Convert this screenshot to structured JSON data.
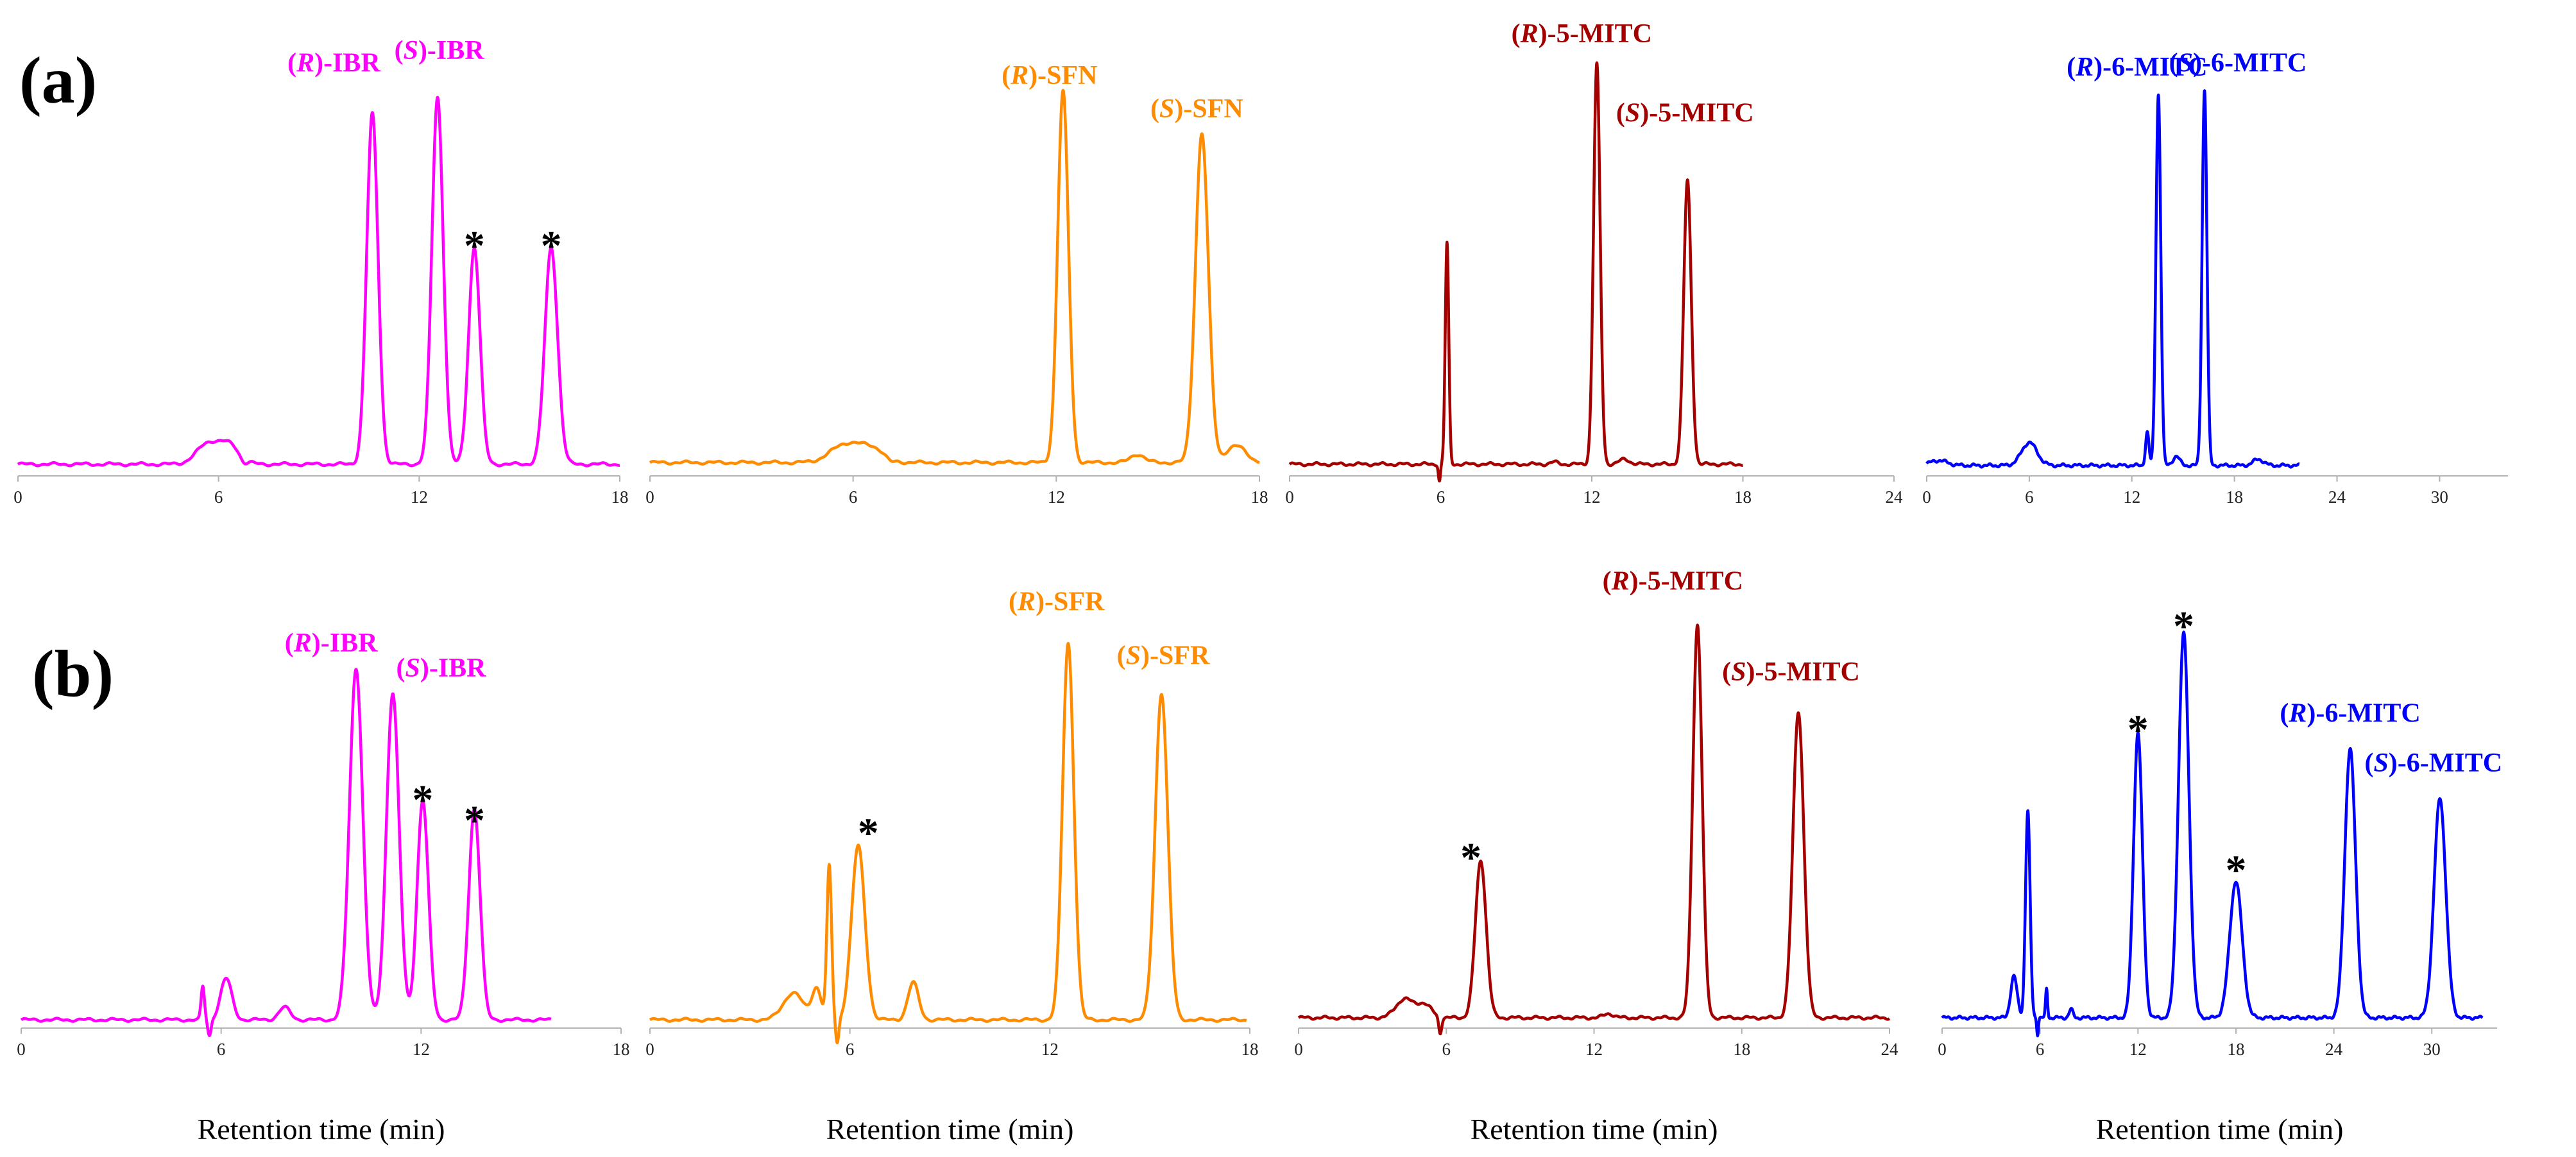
{
  "figure": {
    "row_labels": [
      "(a)",
      "(b)"
    ],
    "axis_color": "#b3b3b3"
  },
  "chart_data": [
    {
      "id": "a1",
      "type": "line",
      "row": "a",
      "color": "#ff00ff",
      "xlabel": "",
      "ylabel": "",
      "xlim": [
        0,
        18
      ],
      "ylim": [
        0,
        100
      ],
      "ticks": [
        0,
        6,
        12,
        18
      ],
      "tick_labels": [
        "0",
        "6",
        "12",
        "18"
      ],
      "baseline": 2.8,
      "features": [
        {
          "c": 5.7,
          "h": 5.0,
          "w": 0.35
        },
        {
          "c": 6.35,
          "h": 4.2,
          "w": 0.3
        },
        {
          "c": 6.75,
          "h": -1.2,
          "w": 0.1
        },
        {
          "c": 10.6,
          "h": 84,
          "w": 0.17
        },
        {
          "c": 12.55,
          "h": 88,
          "w": 0.17
        },
        {
          "c": 13.65,
          "h": 52,
          "w": 0.17
        },
        {
          "c": 15.95,
          "h": 52,
          "w": 0.19
        }
      ],
      "labels": [
        {
          "text_parts": [
            "(",
            "R",
            ")-IBR"
          ],
          "x": 9.45,
          "y": 97
        },
        {
          "text_parts": [
            "(",
            "S",
            ")-IBR"
          ],
          "x": 12.6,
          "y": 100
        }
      ],
      "stars": [
        {
          "x": 13.65,
          "y": 58
        },
        {
          "x": 15.95,
          "y": 58
        }
      ]
    },
    {
      "id": "a2",
      "type": "line",
      "row": "a",
      "color": "#ff8c00",
      "xlabel": "",
      "ylabel": "",
      "xlim": [
        0,
        18
      ],
      "ylim": [
        0,
        100
      ],
      "ticks": [
        0,
        6,
        12,
        18
      ],
      "tick_labels": [
        "0",
        "6",
        "12",
        "18"
      ],
      "baseline": 3.2,
      "features": [
        {
          "c": 5.8,
          "h": 4.5,
          "w": 0.45
        },
        {
          "c": 6.6,
          "h": 3.0,
          "w": 0.35
        },
        {
          "c": 7.1,
          "h": -0.8,
          "w": 0.12
        },
        {
          "c": 12.2,
          "h": 89,
          "w": 0.16
        },
        {
          "c": 14.4,
          "h": 2.0,
          "w": 0.2
        },
        {
          "c": 16.3,
          "h": 79,
          "w": 0.19
        },
        {
          "c": 17.3,
          "h": 4.0,
          "w": 0.3
        }
      ],
      "labels": [
        {
          "text_parts": [
            "(",
            "R",
            ")-SFN"
          ],
          "x": 11.8,
          "y": 94
        },
        {
          "text_parts": [
            "(",
            "S",
            ")-SFN"
          ],
          "x": 16.15,
          "y": 86
        }
      ],
      "stars": []
    },
    {
      "id": "a3",
      "type": "line",
      "row": "a",
      "color": "#a50000",
      "xlabel": "",
      "ylabel": "",
      "xlim": [
        0,
        24
      ],
      "ylim": [
        0,
        100
      ],
      "ticks": [
        0,
        6,
        12,
        18,
        24
      ],
      "tick_labels": [
        "0",
        "6",
        "12",
        "18",
        "24"
      ],
      "baseline": 2.8,
      "x_end": 18,
      "features": [
        {
          "c": 6.25,
          "h": 53,
          "w": 0.07
        },
        {
          "c": 5.95,
          "h": -4.0,
          "w": 0.04
        },
        {
          "c": 10.5,
          "h": 0.5,
          "w": 0.15
        },
        {
          "c": 12.2,
          "h": 96,
          "w": 0.13
        },
        {
          "c": 13.3,
          "h": 1.2,
          "w": 0.2
        },
        {
          "c": 15.8,
          "h": 68,
          "w": 0.15
        }
      ],
      "labels": [
        {
          "text_parts": [
            "(",
            "R",
            ")-5-MITC"
          ],
          "x": 11.6,
          "y": 104
        },
        {
          "text_parts": [
            "(",
            "S",
            ")-5-MITC"
          ],
          "x": 15.7,
          "y": 85
        }
      ],
      "stars": []
    },
    {
      "id": "a4",
      "type": "line",
      "row": "a",
      "color": "#0000ff",
      "xlabel": "",
      "ylabel": "",
      "xlim": [
        0,
        34
      ],
      "ylim": [
        0,
        100
      ],
      "ticks": [
        0,
        6,
        12,
        18,
        24,
        30
      ],
      "tick_labels": [
        "0",
        "6",
        "12",
        "18",
        "24",
        "30"
      ],
      "baseline": 2.5,
      "x_end": 21.8,
      "features": [
        {
          "c": 0.7,
          "h": 1.2,
          "w": 0.5
        },
        {
          "c": 6.0,
          "h": 5.5,
          "w": 0.45
        },
        {
          "c": 12.9,
          "h": 8.0,
          "w": 0.1
        },
        {
          "c": 13.55,
          "h": 89,
          "w": 0.14
        },
        {
          "c": 14.6,
          "h": 2.2,
          "w": 0.2
        },
        {
          "c": 16.25,
          "h": 90,
          "w": 0.14
        },
        {
          "c": 19.4,
          "h": 1.5,
          "w": 0.3
        }
      ],
      "labels": [
        {
          "text_parts": [
            "(",
            "R",
            ")-6-MITC"
          ],
          "x": 12.3,
          "y": 96
        },
        {
          "text_parts": [
            "(",
            "S",
            ")-6-MITC"
          ],
          "x": 18.2,
          "y": 97
        }
      ],
      "stars": []
    },
    {
      "id": "b1",
      "type": "line",
      "row": "b",
      "color": "#ff00ff",
      "xlabel": "Retention time (min)",
      "ylabel": "",
      "xlim": [
        0,
        18
      ],
      "ylim": [
        0,
        100
      ],
      "ticks": [
        0,
        6,
        12,
        18
      ],
      "tick_labels": [
        "0",
        "6",
        "12",
        "18"
      ],
      "baseline": 2.0,
      "x_end": 15.9,
      "features": [
        {
          "c": 5.45,
          "h": 8.0,
          "w": 0.05
        },
        {
          "c": 5.65,
          "h": -4.0,
          "w": 0.05
        },
        {
          "c": 6.15,
          "h": 10,
          "w": 0.17
        },
        {
          "c": 7.9,
          "h": 3.0,
          "w": 0.17
        },
        {
          "c": 10.05,
          "h": 85,
          "w": 0.2
        },
        {
          "c": 11.15,
          "h": 79,
          "w": 0.19
        },
        {
          "c": 12.05,
          "h": 53,
          "w": 0.17
        },
        {
          "c": 13.6,
          "h": 51,
          "w": 0.17
        }
      ],
      "labels": [
        {
          "text_parts": [
            "(",
            "R",
            ")-IBR"
          ],
          "x": 9.3,
          "y": 91
        },
        {
          "text_parts": [
            "(",
            "S",
            ")-IBR"
          ],
          "x": 12.6,
          "y": 85
        }
      ],
      "stars": [
        {
          "x": 12.05,
          "y": 58
        },
        {
          "x": 13.6,
          "y": 53
        }
      ]
    },
    {
      "id": "b2",
      "type": "line",
      "row": "b",
      "color": "#ff8c00",
      "xlabel": "Retention time (min)",
      "ylabel": "",
      "xlim": [
        0,
        18
      ],
      "ylim": [
        0,
        100
      ],
      "ticks": [
        0,
        6,
        12,
        18
      ],
      "tick_labels": [
        "0",
        "6",
        "12",
        "18"
      ],
      "baseline": 2.0,
      "x_end": 17.9,
      "features": [
        {
          "c": 4.3,
          "h": 6.5,
          "w": 0.3
        },
        {
          "c": 5.0,
          "h": 7.5,
          "w": 0.14
        },
        {
          "c": 5.38,
          "h": 37,
          "w": 0.07
        },
        {
          "c": 5.62,
          "h": -6.0,
          "w": 0.05
        },
        {
          "c": 6.25,
          "h": 42,
          "w": 0.2
        },
        {
          "c": 7.9,
          "h": 9.0,
          "w": 0.16
        },
        {
          "c": 12.55,
          "h": 91,
          "w": 0.17
        },
        {
          "c": 15.35,
          "h": 79,
          "w": 0.19
        }
      ],
      "labels": [
        {
          "text_parts": [
            "(",
            "R",
            ")-SFR"
          ],
          "x": 12.2,
          "y": 101
        },
        {
          "text_parts": [
            "(",
            "S",
            ")-SFR"
          ],
          "x": 15.4,
          "y": 88
        }
      ],
      "stars": [
        {
          "x": 6.55,
          "y": 50
        }
      ]
    },
    {
      "id": "b3",
      "type": "line",
      "row": "b",
      "color": "#a50000",
      "xlabel": "Retention time (min)",
      "ylabel": "",
      "xlim": [
        0,
        24
      ],
      "ylim": [
        0,
        100
      ],
      "ticks": [
        0,
        6,
        12,
        18,
        24
      ],
      "tick_labels": [
        "0",
        "6",
        "12",
        "18",
        "24"
      ],
      "baseline": 2.5,
      "features": [
        {
          "c": 4.3,
          "h": 4.5,
          "w": 0.35
        },
        {
          "c": 5.1,
          "h": 3.2,
          "w": 0.3
        },
        {
          "c": 5.75,
          "h": -4.0,
          "w": 0.06
        },
        {
          "c": 7.4,
          "h": 38,
          "w": 0.22
        },
        {
          "c": 12.6,
          "h": 1.0,
          "w": 0.2
        },
        {
          "c": 16.2,
          "h": 95,
          "w": 0.19
        },
        {
          "c": 20.3,
          "h": 74,
          "w": 0.22
        }
      ],
      "labels": [
        {
          "text_parts": [
            "(",
            "R",
            ")-5-MITC"
          ],
          "x": 15.2,
          "y": 106
        },
        {
          "text_parts": [
            "(",
            "S",
            ")-5-MITC"
          ],
          "x": 20.0,
          "y": 84
        }
      ],
      "stars": [
        {
          "x": 7.0,
          "y": 44
        }
      ]
    },
    {
      "id": "b4",
      "type": "line",
      "row": "b",
      "color": "#0000ff",
      "xlabel": "Retention time (min)",
      "ylabel": "",
      "xlim": [
        0,
        34
      ],
      "ylim": [
        0,
        100
      ],
      "ticks": [
        0,
        6,
        12,
        18,
        24,
        30
      ],
      "tick_labels": [
        "0",
        "6",
        "12",
        "18",
        "24",
        "30"
      ],
      "baseline": 2.5,
      "x_end": 33.1,
      "features": [
        {
          "c": 4.4,
          "h": 10,
          "w": 0.2
        },
        {
          "c": 5.25,
          "h": 50,
          "w": 0.14
        },
        {
          "c": 5.85,
          "h": -4.0,
          "w": 0.05
        },
        {
          "c": 6.4,
          "h": 7.0,
          "w": 0.06
        },
        {
          "c": 7.9,
          "h": 2.0,
          "w": 0.12
        },
        {
          "c": 12.0,
          "h": 69,
          "w": 0.27
        },
        {
          "c": 14.8,
          "h": 93,
          "w": 0.32
        },
        {
          "c": 18.0,
          "h": 33,
          "w": 0.38
        },
        {
          "c": 25.0,
          "h": 65,
          "w": 0.33
        },
        {
          "c": 30.5,
          "h": 53,
          "w": 0.36
        }
      ],
      "labels": [
        {
          "text_parts": [
            "(",
            "R",
            ")-6-MITC"
          ],
          "x": 25.0,
          "y": 74
        },
        {
          "text_parts": [
            "(",
            "S",
            ")-6-MITC"
          ],
          "x": 30.1,
          "y": 62
        }
      ],
      "stars": [
        {
          "x": 12.0,
          "y": 75
        },
        {
          "x": 14.8,
          "y": 100
        },
        {
          "x": 18.0,
          "y": 41
        }
      ]
    }
  ]
}
